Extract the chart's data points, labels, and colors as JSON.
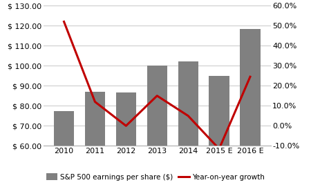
{
  "categories": [
    "2010",
    "2011",
    "2012",
    "2013",
    "2014",
    "2015 E",
    "2016 E"
  ],
  "eps_values": [
    77.5,
    87.0,
    86.5,
    100.0,
    102.0,
    95.0,
    118.5
  ],
  "yoy_growth": [
    0.52,
    0.12,
    0.0,
    0.15,
    0.05,
    -0.115,
    0.245
  ],
  "bar_color": "#808080",
  "line_color": "#c00000",
  "left_ylim": [
    60,
    130
  ],
  "right_ylim": [
    -0.1,
    0.6
  ],
  "left_yticks": [
    60,
    70,
    80,
    90,
    100,
    110,
    120,
    130
  ],
  "right_yticks": [
    -0.1,
    0.0,
    0.1,
    0.2,
    0.3,
    0.4,
    0.5,
    0.6
  ],
  "legend_bar": "S&P 500 earnings per share ($)",
  "legend_line": "Year-on-year growth",
  "background_color": "#ffffff",
  "grid_color": "#c8c8c8"
}
